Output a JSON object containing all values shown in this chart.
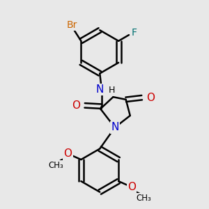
{
  "background_color": "#e8e8e8",
  "bond_color": "#000000",
  "bond_width": 1.8,
  "atom_colors": {
    "N": "#0000cc",
    "O": "#cc0000",
    "F": "#007070",
    "Br": "#cc6600",
    "C": "#000000",
    "H": "#000000"
  },
  "font_size": 9,
  "fig_width": 3.0,
  "fig_height": 3.0,
  "dpi": 100
}
